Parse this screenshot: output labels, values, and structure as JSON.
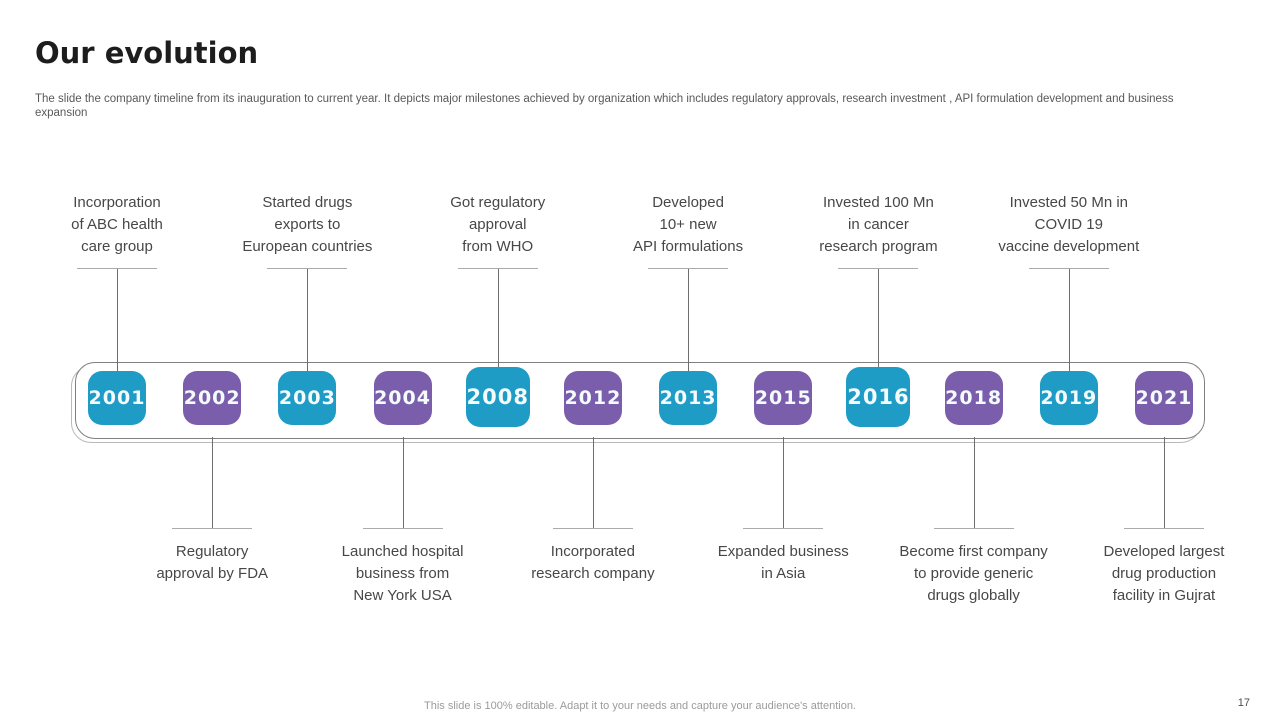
{
  "slide": {
    "title": "Our evolution",
    "subtitle": "The slide the company timeline from its inauguration to current year.  It depicts major milestones achieved by organization which includes regulatory approvals, research investment , API formulation development and business expansion",
    "footer_note": "This slide is 100% editable. Adapt it to your needs and capture your audience's attention.",
    "page_number": "17"
  },
  "colors": {
    "teal": "#1E9CC6",
    "purple": "#7A5EAC",
    "connector_line": "#6e6e6e",
    "tick_line": "#ababab",
    "label_text": "#474747"
  },
  "timeline": {
    "milestones": [
      {
        "year": "2001",
        "color": "teal",
        "side": "top",
        "large": false,
        "label": "Incorporation\nof ABC health\ncare group"
      },
      {
        "year": "2002",
        "color": "purple",
        "side": "bottom",
        "large": false,
        "label": "Regulatory\napproval by FDA"
      },
      {
        "year": "2003",
        "color": "teal",
        "side": "top",
        "large": false,
        "label": "Started drugs\nexports to\nEuropean countries"
      },
      {
        "year": "2004",
        "color": "purple",
        "side": "bottom",
        "large": false,
        "label": "Launched hospital\nbusiness from\nNew York USA"
      },
      {
        "year": "2008",
        "color": "teal",
        "side": "top",
        "large": true,
        "label": "Got regulatory\napproval\nfrom WHO"
      },
      {
        "year": "2012",
        "color": "purple",
        "side": "bottom",
        "large": false,
        "label": "Incorporated\nresearch company"
      },
      {
        "year": "2013",
        "color": "teal",
        "side": "top",
        "large": false,
        "label": "Developed\n10+ new\nAPI formulations"
      },
      {
        "year": "2015",
        "color": "purple",
        "side": "bottom",
        "large": false,
        "label": "Expanded business\nin Asia"
      },
      {
        "year": "2016",
        "color": "teal",
        "side": "top",
        "large": true,
        "label": "Invested 100 Mn\nin cancer\nresearch program"
      },
      {
        "year": "2018",
        "color": "purple",
        "side": "bottom",
        "large": false,
        "label": "Become first company\nto provide generic\ndrugs globally"
      },
      {
        "year": "2019",
        "color": "teal",
        "side": "top",
        "large": false,
        "label": "Invested 50 Mn in\nCOVID 19\nvaccine development"
      },
      {
        "year": "2021",
        "color": "purple",
        "side": "bottom",
        "large": false,
        "label": "Developed largest\ndrug production\nfacility in Gujrat"
      }
    ]
  }
}
